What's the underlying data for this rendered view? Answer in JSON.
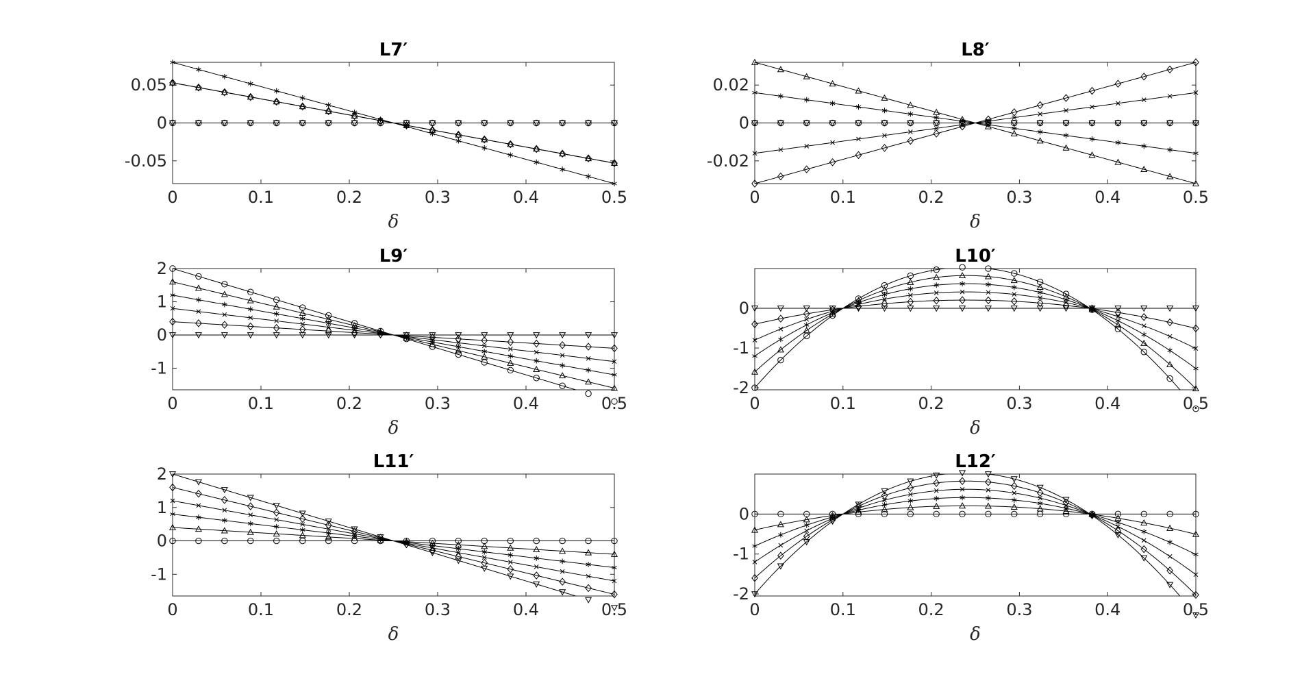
{
  "chart_data": [
    {
      "type": "line",
      "title": "L7′",
      "xlabel": "δ",
      "ylabel": "",
      "xlim": [
        0,
        0.5
      ],
      "ylim": [
        -0.08,
        0.08
      ],
      "xticks": [
        "0",
        "0.1",
        "0.2",
        "0.3",
        "0.4",
        "0.5"
      ],
      "yticks": [
        {
          "v": 0.05,
          "t": "0.05"
        },
        {
          "v": 0,
          "t": "0"
        },
        {
          "v": -0.05,
          "t": "-0.05"
        }
      ],
      "grid": false,
      "series": [
        {
          "marker": "asterisk",
          "shape": "linear",
          "y0": 0.08
        },
        {
          "marker": "triangle-up",
          "shape": "linear",
          "y0": 0.053
        },
        {
          "marker": "diamond",
          "shape": "linear",
          "y0": 0.053
        },
        {
          "marker": "circle",
          "shape": "linear",
          "y0": 0
        },
        {
          "marker": "triangle-down",
          "shape": "linear",
          "y0": 0
        }
      ]
    },
    {
      "type": "line",
      "title": "L8′",
      "xlabel": "δ",
      "ylabel": "",
      "xlim": [
        0,
        0.5
      ],
      "ylim": [
        -0.032,
        0.032
      ],
      "xticks": [
        "0",
        "0.1",
        "0.2",
        "0.3",
        "0.4",
        "0.5"
      ],
      "yticks": [
        {
          "v": 0.02,
          "t": "0.02"
        },
        {
          "v": 0,
          "t": "0"
        },
        {
          "v": -0.02,
          "t": "-0.02"
        }
      ],
      "grid": false,
      "series": [
        {
          "marker": "triangle-up",
          "shape": "linear",
          "y0": 0.032
        },
        {
          "marker": "asterisk",
          "shape": "linear",
          "y0": 0.016
        },
        {
          "marker": "circle",
          "shape": "linear",
          "y0": 0
        },
        {
          "marker": "triangle-down",
          "shape": "linear",
          "y0": 0
        },
        {
          "marker": "cross",
          "shape": "linear",
          "y0": -0.016
        },
        {
          "marker": "diamond",
          "shape": "linear",
          "y0": -0.032
        }
      ]
    },
    {
      "type": "line",
      "title": "L9′",
      "xlabel": "δ",
      "ylabel": "",
      "xlim": [
        0,
        0.5
      ],
      "ylim": [
        -1.65,
        2
      ],
      "xticks": [
        "0",
        "0.1",
        "0.2",
        "0.3",
        "0.4",
        "0.5"
      ],
      "yticks": [
        {
          "v": 2,
          "t": "2"
        },
        {
          "v": 1,
          "t": "1"
        },
        {
          "v": 0,
          "t": "0"
        },
        {
          "v": -1,
          "t": "-1"
        }
      ],
      "grid": false,
      "series": [
        {
          "marker": "circle",
          "shape": "linear",
          "y0": 2.0
        },
        {
          "marker": "triangle-up",
          "shape": "linear",
          "y0": 1.6
        },
        {
          "marker": "asterisk",
          "shape": "linear",
          "y0": 1.2
        },
        {
          "marker": "cross",
          "shape": "linear",
          "y0": 0.8
        },
        {
          "marker": "diamond",
          "shape": "linear",
          "y0": 0.4
        },
        {
          "marker": "triangle-down",
          "shape": "linear",
          "y0": 0
        }
      ]
    },
    {
      "type": "line",
      "title": "L10′",
      "xlabel": "δ",
      "ylabel": "",
      "xlim": [
        0,
        0.5
      ],
      "ylim": [
        -2.05,
        1.0
      ],
      "xticks": [
        "0",
        "0.1",
        "0.2",
        "0.3",
        "0.4",
        "0.5"
      ],
      "yticks": [
        {
          "v": 0,
          "t": "0"
        },
        {
          "v": -1,
          "t": "-1"
        },
        {
          "v": -2,
          "t": "-2"
        }
      ],
      "grid": false,
      "series": [
        {
          "marker": "circle",
          "shape": "quadratic",
          "y0": -2.0
        },
        {
          "marker": "triangle-up",
          "shape": "quadratic",
          "y0": -1.6
        },
        {
          "marker": "asterisk",
          "shape": "quadratic",
          "y0": -1.2
        },
        {
          "marker": "cross",
          "shape": "quadratic",
          "y0": -0.8
        },
        {
          "marker": "diamond",
          "shape": "quadratic",
          "y0": -0.4
        },
        {
          "marker": "triangle-down",
          "shape": "quadratic",
          "y0": 0
        }
      ]
    },
    {
      "type": "line",
      "title": "L11′",
      "xlabel": "δ",
      "ylabel": "",
      "xlim": [
        0,
        0.5
      ],
      "ylim": [
        -1.65,
        2
      ],
      "xticks": [
        "0",
        "0.1",
        "0.2",
        "0.3",
        "0.4",
        "0.5"
      ],
      "yticks": [
        {
          "v": 2,
          "t": "2"
        },
        {
          "v": 1,
          "t": "1"
        },
        {
          "v": 0,
          "t": "0"
        },
        {
          "v": -1,
          "t": "-1"
        }
      ],
      "grid": false,
      "series": [
        {
          "marker": "triangle-down",
          "shape": "linear",
          "y0": 2.0
        },
        {
          "marker": "diamond",
          "shape": "linear",
          "y0": 1.6
        },
        {
          "marker": "cross",
          "shape": "linear",
          "y0": 1.2
        },
        {
          "marker": "asterisk",
          "shape": "linear",
          "y0": 0.8
        },
        {
          "marker": "triangle-up",
          "shape": "linear",
          "y0": 0.4
        },
        {
          "marker": "circle",
          "shape": "linear",
          "y0": 0
        }
      ]
    },
    {
      "type": "line",
      "title": "L12′",
      "xlabel": "δ",
      "ylabel": "",
      "xlim": [
        0,
        0.5
      ],
      "ylim": [
        -2.05,
        1.0
      ],
      "xticks": [
        "0",
        "0.1",
        "0.2",
        "0.3",
        "0.4",
        "0.5"
      ],
      "yticks": [
        {
          "v": 0,
          "t": "0"
        },
        {
          "v": -1,
          "t": "-1"
        },
        {
          "v": -2,
          "t": "-2"
        }
      ],
      "grid": false,
      "series": [
        {
          "marker": "triangle-down",
          "shape": "quadratic",
          "y0": -2.0
        },
        {
          "marker": "diamond",
          "shape": "quadratic",
          "y0": -1.6
        },
        {
          "marker": "cross",
          "shape": "quadratic",
          "y0": -1.2
        },
        {
          "marker": "asterisk",
          "shape": "quadratic",
          "y0": -0.8
        },
        {
          "marker": "triangle-up",
          "shape": "quadratic",
          "y0": -0.4
        },
        {
          "marker": "circle",
          "shape": "quadratic",
          "y0": 0
        }
      ]
    }
  ]
}
